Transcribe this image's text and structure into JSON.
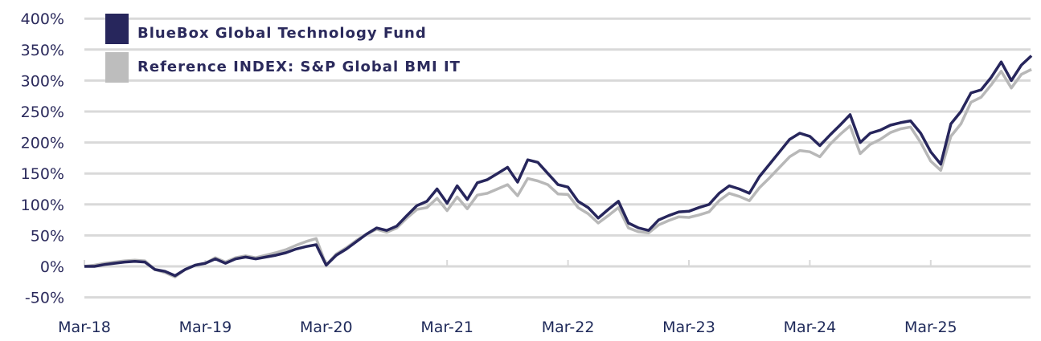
{
  "chart_data": {
    "type": "line",
    "title": "",
    "xlabel": "",
    "ylabel": "",
    "x_start": "2018-03",
    "frequency": "monthly",
    "x_tick_labels": [
      "Mar-18",
      "Mar-19",
      "Mar-20",
      "Mar-21",
      "Mar-22",
      "Mar-23",
      "Mar-24",
      "Mar-25"
    ],
    "y_tick_labels": [
      "400%",
      "350%",
      "300%",
      "250%",
      "200%",
      "150%",
      "100%",
      "50%",
      "0%",
      "-50%"
    ],
    "y_ticks": [
      400,
      350,
      300,
      250,
      200,
      150,
      100,
      50,
      0,
      -50
    ],
    "ylim": [
      -50,
      400
    ],
    "grid": true,
    "legend_position": "top-left",
    "series": [
      {
        "name": "BlueBox Global Technology Fund",
        "color": "#27265c",
        "values": [
          0,
          0,
          3,
          5,
          7,
          8,
          7,
          -5,
          -8,
          -15,
          -5,
          2,
          5,
          12,
          5,
          12,
          15,
          12,
          15,
          18,
          22,
          28,
          32,
          35,
          2,
          18,
          28,
          40,
          52,
          62,
          58,
          65,
          82,
          98,
          105,
          125,
          102,
          130,
          108,
          135,
          140,
          150,
          160,
          136,
          172,
          168,
          150,
          132,
          128,
          105,
          95,
          78,
          92,
          105,
          70,
          62,
          58,
          75,
          82,
          88,
          89,
          95,
          100,
          118,
          130,
          125,
          118,
          145,
          165,
          185,
          205,
          215,
          210,
          195,
          212,
          228,
          245,
          200,
          215,
          220,
          228,
          232,
          235,
          215,
          185,
          165,
          230,
          250,
          280,
          285,
          305,
          330,
          300,
          325,
          340
        ]
      },
      {
        "name": "Reference INDEX: S&P Global BMI IT",
        "color": "#b8b8b8",
        "values": [
          0,
          2,
          5,
          7,
          9,
          10,
          9,
          -5,
          -10,
          -17,
          -5,
          2,
          5,
          14,
          7,
          14,
          17,
          14,
          18,
          22,
          27,
          34,
          40,
          45,
          2,
          20,
          30,
          42,
          52,
          60,
          55,
          62,
          78,
          92,
          95,
          110,
          90,
          112,
          93,
          115,
          118,
          125,
          132,
          114,
          142,
          138,
          132,
          117,
          116,
          95,
          85,
          70,
          82,
          95,
          62,
          56,
          54,
          67,
          74,
          80,
          79,
          83,
          88,
          106,
          118,
          113,
          106,
          127,
          143,
          160,
          177,
          187,
          185,
          177,
          197,
          213,
          227,
          182,
          197,
          205,
          216,
          222,
          225,
          200,
          170,
          155,
          210,
          230,
          265,
          273,
          293,
          315,
          288,
          310,
          318
        ]
      }
    ]
  }
}
